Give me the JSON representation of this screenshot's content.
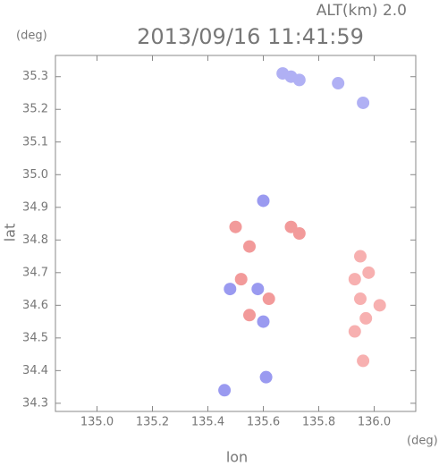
{
  "chart_data": {
    "type": "scatter",
    "title": "2013/09/16 11:41:59",
    "subtitle": "ALT(km) 2.0",
    "x_label": "lon",
    "y_label": "lat",
    "x_unit": "(deg)",
    "y_unit": "(deg)",
    "xlim": [
      134.85,
      136.15
    ],
    "ylim": [
      34.275,
      35.365
    ],
    "xticks": [
      {
        "value": 135,
        "label": "135.0"
      },
      135.2,
      135.4,
      135.6,
      135.8,
      {
        "value": 136,
        "label": "136.0"
      }
    ],
    "yticks": [
      34.3,
      34.4,
      34.5,
      34.6,
      34.7,
      34.8,
      34.9,
      {
        "value": 35,
        "label": "35.0"
      },
      35.1,
      35.2,
      35.3
    ],
    "x": [
      135.7,
      135.73,
      135.67,
      135.87,
      135.96,
      135.95,
      135.93,
      135.98,
      135.95,
      136.02,
      135.97,
      135.93,
      135.96,
      135.5,
      135.55,
      135.7,
      135.73,
      135.52,
      135.62,
      135.55,
      135.58,
      135.48,
      135.6,
      135.61,
      135.46,
      135.6
    ],
    "values": [
      35.3,
      35.29,
      35.31,
      35.28,
      35.22,
      34.75,
      34.68,
      34.7,
      34.62,
      34.6,
      34.56,
      34.52,
      34.43,
      34.84,
      34.78,
      34.84,
      34.82,
      34.68,
      34.62,
      34.57,
      34.65,
      34.65,
      34.55,
      34.38,
      34.34,
      34.92
    ],
    "colors": [
      "#b0b0f4",
      "#b0b0f4",
      "#b0b0f4",
      "#b0b0f4",
      "#b0b0f4",
      "#f7b0b0",
      "#f7b0b0",
      "#f7b0b0",
      "#f7b0b0",
      "#f7b0b0",
      "#f7b0b0",
      "#f7b0b0",
      "#f7b0b0",
      "#f29a9a",
      "#f29a9a",
      "#f29a9a",
      "#f29a9a",
      "#f29a9a",
      "#f29a9a",
      "#f29a9a",
      "#9a9af0",
      "#9a9af0",
      "#9a9af0",
      "#9a9af0",
      "#9a9af0",
      "#9a9af0"
    ]
  }
}
